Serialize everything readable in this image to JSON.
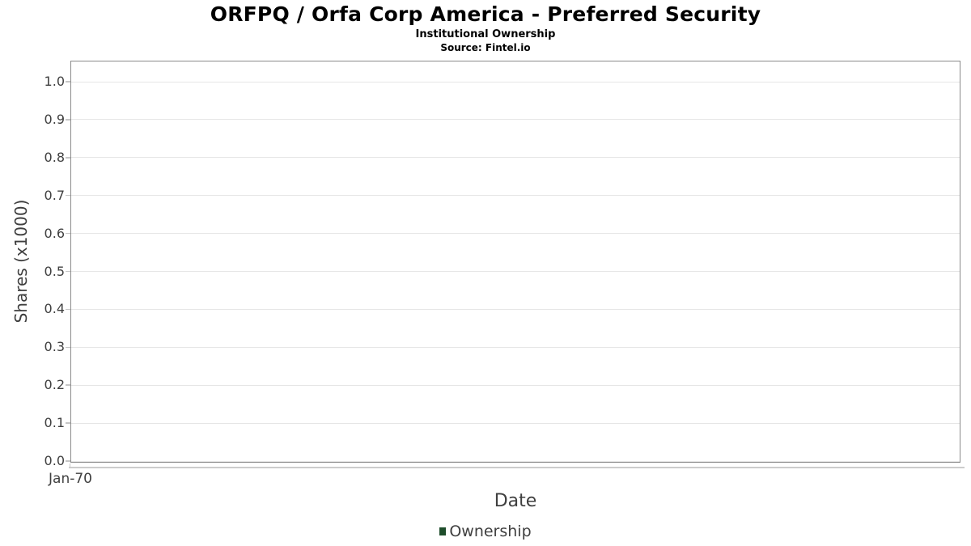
{
  "chart_data": {
    "type": "line",
    "title": "ORFPQ / Orfa Corp America - Preferred Security",
    "subtitle": "Institutional Ownership",
    "source": "Source: Fintel.io",
    "xlabel": "Date",
    "ylabel": "Shares (x1000)",
    "xticks": [
      "Jan-70"
    ],
    "yticks": [
      "1.0",
      "0.9",
      "0.8",
      "0.7",
      "0.6",
      "0.5",
      "0.4",
      "0.3",
      "0.2",
      "0.1",
      "0.0"
    ],
    "ylim": [
      0.0,
      1.0
    ],
    "grid": "horizontal-only",
    "plot_is_empty": true,
    "legend": {
      "position": "bottom-center",
      "entries": [
        {
          "label": "Ownership",
          "color": "#1e4d2b"
        }
      ]
    },
    "series": [
      {
        "name": "Ownership",
        "x": [],
        "values": []
      }
    ],
    "colors": {
      "plot_border": "#8a8a8a",
      "gridline": "#e6e6e6",
      "tick_mark": "#c6c6c6",
      "axis_text": "#3f3f3f",
      "title_text": "#000000",
      "legend_marker": "#1e4d2b"
    }
  }
}
